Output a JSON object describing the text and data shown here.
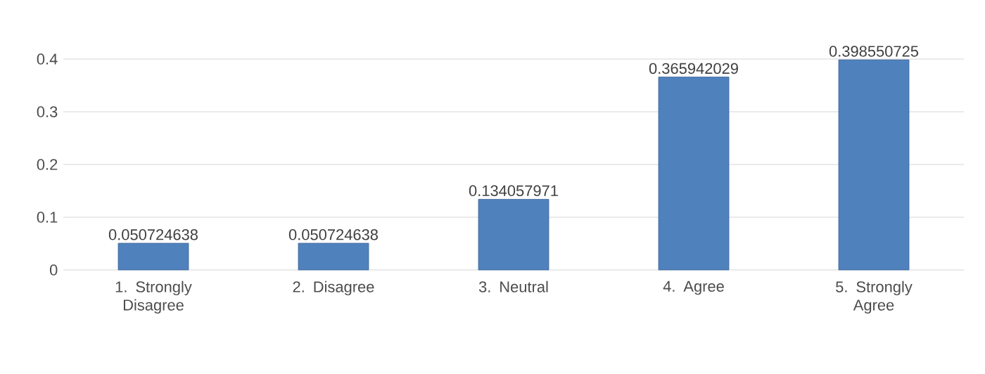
{
  "chart_data": {
    "type": "bar",
    "categories": [
      "1. Strongly Disagree",
      "2. Disagree",
      "3. Neutral",
      "4. Agree",
      "5. Strongly Agree"
    ],
    "values": [
      0.050724638,
      0.050724638,
      0.134057971,
      0.365942029,
      0.398550725
    ],
    "color": "#4f81bd",
    "ylim": [
      0,
      0.4
    ],
    "yticks": [
      0,
      0.1,
      0.2,
      0.3,
      0.4
    ],
    "grid": "y",
    "data_labels": true
  }
}
